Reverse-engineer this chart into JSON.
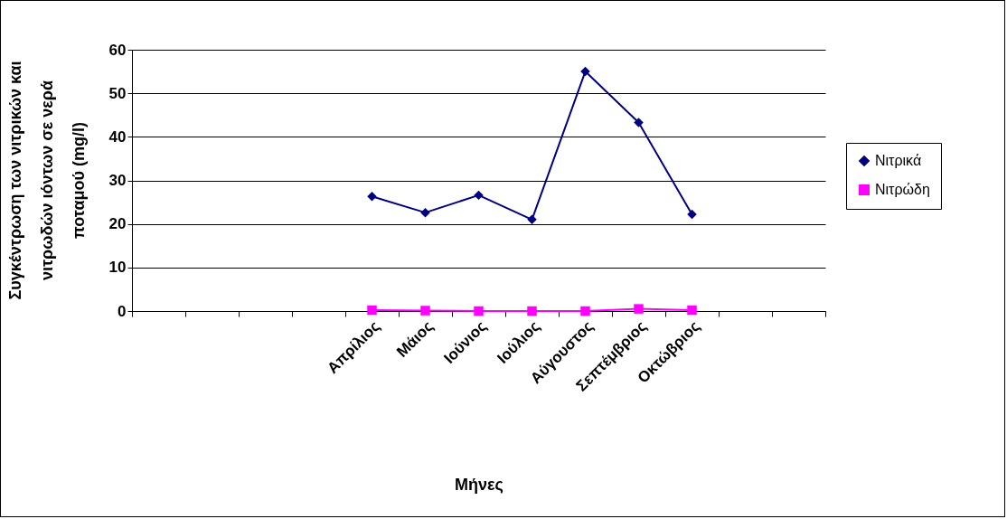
{
  "chart_data": {
    "type": "line",
    "xlabel": "Μήνες",
    "ylabel": "Συγκέντρωση των νιτρικών και νιτρωδών ιόντων σε νερά ποταμού  (mg/l)",
    "categories": [
      null,
      null,
      null,
      null,
      "Απρίλιος",
      "Μάιος",
      "Ιούνιος",
      "Ιούλιος",
      "Αύγουστος",
      "Σεπτέμβριος",
      "Οκτώβριος",
      null,
      null
    ],
    "series": [
      {
        "name": "Νιτρικά",
        "color": "#000080",
        "marker": "diamond",
        "values": [
          null,
          null,
          null,
          null,
          26.3,
          22.6,
          26.6,
          21,
          55,
          43.3,
          22.2,
          null,
          null
        ]
      },
      {
        "name": "Νιτρώδη",
        "color": "#ff00ff",
        "marker": "square",
        "values": [
          null,
          null,
          null,
          null,
          0.2,
          0.1,
          0,
          0,
          0,
          0.5,
          0.2,
          null,
          null
        ]
      }
    ],
    "ylim": [
      0,
      60
    ],
    "yticks": [
      0,
      10,
      20,
      30,
      40,
      50,
      60
    ],
    "grid": "y",
    "legend": "right"
  }
}
